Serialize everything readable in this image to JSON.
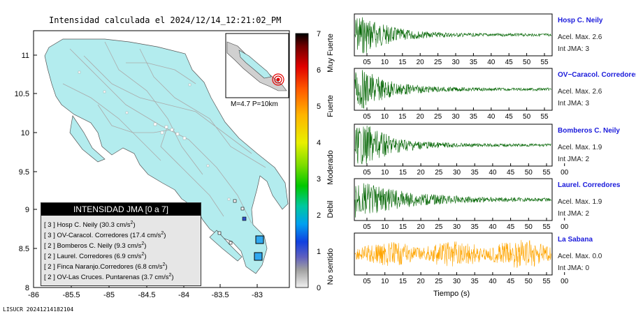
{
  "map": {
    "title": "Intensidad calculada el 2024/12/14_12:21:02_PM",
    "inset_label": "M=4.7 P=10km",
    "footer_id": "LISUCR 20241214182104",
    "x_ticks": [
      "-86",
      "-85.5",
      "-85",
      "-84.5",
      "-84",
      "-83.5",
      "-83"
    ],
    "y_ticks": [
      "11",
      "10.5",
      "10",
      "9.5",
      "9",
      "8.5",
      "8"
    ],
    "colors": {
      "land": "#b3ecee",
      "sea": "#ffffff",
      "roads": "#b0b0b0"
    }
  },
  "colorbar": {
    "numbers": [
      "7",
      "6",
      "5",
      "4",
      "3",
      "2",
      "1",
      "0"
    ],
    "categories": [
      "Muy Fuerte",
      "Fuerte",
      "Moderado",
      "Debil",
      "No sentido"
    ],
    "range": [
      0,
      7
    ]
  },
  "legend": {
    "title": "INTENSIDAD JMA [0 a 7]",
    "entries": [
      {
        "level": "[ 3 ]",
        "text": "Hosp C. Neily (30.3 cm/s",
        "sup": "2",
        ")": ")"
      },
      {
        "level": "[ 3 ]",
        "text": "OV-Caracol. Corredores (17.4 cm/s",
        "sup": "2"
      },
      {
        "level": "[ 2 ]",
        "text": "Bomberos C. Neily (9.3 cm/s",
        "sup": "2"
      },
      {
        "level": "[ 2 ]",
        "text": "Laurel. Corredores (6.9 cm/s",
        "sup": "2"
      },
      {
        "level": "[ 2 ]",
        "text": "Finca Naranjo.Corredores (6.8 cm/s",
        "sup": "2"
      },
      {
        "level": "[ 2 ]",
        "text": "OV-Las Cruces. Puntarenas (3.7 cm/s",
        "sup": "2"
      }
    ],
    "close_paren": ")"
  },
  "chart_data": {
    "type": "line",
    "title": "",
    "xlabel": "Tiempo (s)",
    "series": [
      {
        "name": "Hosp C. Neily",
        "acc": "Acel. Max. 2.6",
        "int": "Int JMA: 3",
        "color": "#006400",
        "ticks": [
          "05",
          "10",
          "15",
          "20",
          "25",
          "30",
          "35",
          "40",
          "45",
          "50",
          "55"
        ]
      },
      {
        "name": "OV−Caracol. Corredores",
        "acc": "Acel. Max. 2.6",
        "int": "Int JMA: 3",
        "color": "#006400",
        "ticks": [
          "05",
          "10",
          "15",
          "20",
          "25",
          "30",
          "35",
          "40",
          "45",
          "50",
          "55"
        ]
      },
      {
        "name": "Bomberos C. Neily",
        "acc": "Acel. Max. 1.9",
        "int": "Int JMA: 2",
        "color": "#006400",
        "ticks": [
          "05",
          "10",
          "15",
          "20",
          "25",
          "30",
          "35",
          "40",
          "45",
          "50",
          "55",
          "00"
        ]
      },
      {
        "name": "Laurel. Corredores",
        "acc": "Acel. Max. 1.9",
        "int": "Int JMA: 2",
        "color": "#006400",
        "ticks": [
          "05",
          "10",
          "15",
          "20",
          "25",
          "30",
          "35",
          "40",
          "45",
          "50",
          "55",
          "00"
        ]
      },
      {
        "name": "La Sabana",
        "acc": "Acel. Max. 0.0",
        "int": "Int JMA: 0",
        "color": "#ffa500",
        "ticks": [
          "05",
          "10",
          "15",
          "20",
          "25",
          "30",
          "35",
          "40",
          "45",
          "50",
          "55",
          "00"
        ]
      }
    ]
  }
}
